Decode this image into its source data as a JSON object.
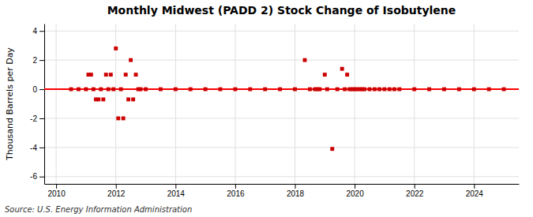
{
  "chart_data": {
    "type": "scatter",
    "title": "Monthly Midwest (PADD 2) Stock Change of Isobutylene",
    "y_label": "Thousand Barrels per Day",
    "annotations": [
      "Source: U.S. Energy Information Administration"
    ],
    "color": "#cc0000",
    "marker": "square",
    "grid": true,
    "xlim": [
      2009.6,
      2025.5
    ],
    "ylim": [
      -6.5,
      4.5
    ],
    "xticks": [
      2010,
      2012,
      2014,
      2016,
      2018,
      2020,
      2022,
      2024
    ],
    "yticks": [
      -6,
      -4,
      -2,
      0,
      2,
      4
    ],
    "hlines": [
      {
        "y": 0,
        "color": "#ff0000"
      }
    ],
    "x": [
      2010.5,
      2010.75,
      2011.0,
      2011.08,
      2011.17,
      2011.25,
      2011.33,
      2011.42,
      2011.5,
      2011.58,
      2011.67,
      2011.75,
      2011.83,
      2011.92,
      2012.0,
      2012.08,
      2012.17,
      2012.25,
      2012.33,
      2012.42,
      2012.5,
      2012.58,
      2012.67,
      2012.75,
      2012.83,
      2013.0,
      2013.5,
      2014.0,
      2014.5,
      2015.0,
      2015.5,
      2016.0,
      2016.5,
      2017.0,
      2017.5,
      2018.0,
      2018.33,
      2018.5,
      2018.67,
      2018.75,
      2018.83,
      2019.0,
      2019.08,
      2019.25,
      2019.42,
      2019.58,
      2019.67,
      2019.75,
      2019.83,
      2019.92,
      2020.0,
      2020.08,
      2020.17,
      2020.25,
      2020.33,
      2020.5,
      2020.67,
      2020.83,
      2021.0,
      2021.17,
      2021.33,
      2021.5,
      2022.0,
      2022.5,
      2023.0,
      2023.5,
      2024.0,
      2024.5,
      2025.0
    ],
    "values": [
      0.0,
      0.0,
      0.0,
      1.0,
      1.0,
      0.0,
      -0.7,
      -0.7,
      0.0,
      -0.7,
      1.0,
      0.0,
      1.0,
      0.0,
      2.8,
      -2.0,
      0.0,
      -2.0,
      1.0,
      -0.7,
      2.0,
      -0.7,
      1.0,
      0.0,
      0.0,
      0.0,
      0.0,
      0.0,
      0.0,
      0.0,
      0.0,
      0.0,
      0.0,
      0.0,
      0.0,
      0.0,
      2.0,
      0.0,
      0.0,
      0.0,
      0.0,
      1.0,
      0.0,
      -4.1,
      0.0,
      1.4,
      0.0,
      1.0,
      0.0,
      0.0,
      0.0,
      0.0,
      0.0,
      0.0,
      0.0,
      0.0,
      0.0,
      0.0,
      0.0,
      0.0,
      0.0,
      0.0,
      0.0,
      0.0,
      0.0,
      0.0,
      0.0,
      0.0,
      0.0
    ]
  }
}
